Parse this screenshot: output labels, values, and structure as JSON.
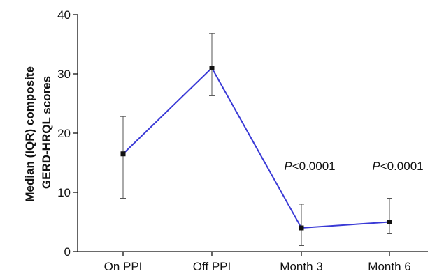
{
  "chart_data": {
    "type": "line",
    "title": "",
    "xlabel": "",
    "ylabel_lines": [
      "Median (IQR) composite",
      "GERD-HRQL scores"
    ],
    "categories": [
      "On PPI",
      "Off PPI",
      "Month 3",
      "Month 6"
    ],
    "yticks": [
      "0",
      "10",
      "20",
      "30",
      "40"
    ],
    "ylim": [
      0,
      40
    ],
    "series": [
      {
        "values": [
          16.5,
          31,
          4,
          5
        ],
        "error_low": [
          9,
          26.3,
          1,
          3
        ],
        "error_high": [
          22.8,
          36.8,
          8,
          9
        ],
        "color": "#3a3ad6"
      }
    ],
    "annotations": [
      {
        "category": "Month 3",
        "prefix": "P",
        "text": "<0.0001"
      },
      {
        "category": "Month 6",
        "prefix": "P",
        "text": "<0.0001"
      }
    ],
    "grid": false,
    "legend": "none"
  }
}
